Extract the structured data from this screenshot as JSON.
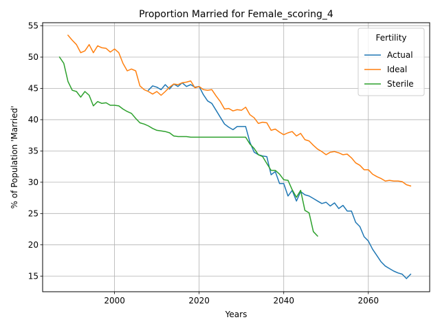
{
  "chart_data": {
    "type": "line",
    "title": "Proportion Married for Female_scoring_4",
    "xlabel": "Years",
    "ylabel": "% of Population 'Married'",
    "xlim": [
      1983,
      2074.5
    ],
    "ylim": [
      12.5,
      55.5
    ],
    "xticks": [
      2000,
      2020,
      2040,
      2060
    ],
    "yticks": [
      15,
      20,
      25,
      30,
      35,
      40,
      45,
      50,
      55
    ],
    "grid": true,
    "legend": {
      "title": "Fertility",
      "placement": "top-right"
    },
    "series": [
      {
        "name": "Actual",
        "color": "#1f77b4",
        "x": [
          2008,
          2009,
          2010,
          2011,
          2012,
          2013,
          2014,
          2015,
          2016,
          2017,
          2018,
          2019,
          2020,
          2021,
          2022,
          2023,
          2024,
          2025,
          2026,
          2027,
          2028,
          2029,
          2030,
          2031,
          2032,
          2033,
          2034,
          2035,
          2036,
          2037,
          2038,
          2039,
          2040,
          2041,
          2042,
          2043,
          2044,
          2045,
          2046,
          2047,
          2048,
          2049,
          2050,
          2051,
          2052,
          2053,
          2054,
          2055,
          2056,
          2057,
          2058,
          2059,
          2060,
          2061,
          2062,
          2063,
          2064,
          2065,
          2066,
          2067,
          2068,
          2069,
          2070
        ],
        "y": [
          44.7,
          45.4,
          45.2,
          44.8,
          45.6,
          44.9,
          45.7,
          45.3,
          45.9,
          45.3,
          45.6,
          45.2,
          45.3,
          44.0,
          43.0,
          42.6,
          41.5,
          40.4,
          39.3,
          38.8,
          38.4,
          38.9,
          38.9,
          38.9,
          36.4,
          34.8,
          34.4,
          34.2,
          34.1,
          31.2,
          31.7,
          29.8,
          29.8,
          27.8,
          28.7,
          27.0,
          28.5,
          28.0,
          27.8,
          27.4,
          27.0,
          26.6,
          26.8,
          26.2,
          26.7,
          25.8,
          26.3,
          25.4,
          25.4,
          23.6,
          22.9,
          21.3,
          20.6,
          19.3,
          18.3,
          17.3,
          16.6,
          16.2,
          15.8,
          15.5,
          15.3,
          14.6,
          15.3
        ]
      },
      {
        "name": "Ideal",
        "color": "#ff7f0e",
        "x": [
          1989,
          1990,
          1991,
          1992,
          1993,
          1994,
          1995,
          1996,
          1997,
          1998,
          1999,
          2000,
          2001,
          2002,
          2003,
          2004,
          2005,
          2006,
          2007,
          2008,
          2009,
          2010,
          2011,
          2012,
          2013,
          2014,
          2015,
          2016,
          2017,
          2018,
          2019,
          2020,
          2021,
          2022,
          2023,
          2024,
          2025,
          2026,
          2027,
          2028,
          2029,
          2030,
          2031,
          2032,
          2033,
          2034,
          2035,
          2036,
          2037,
          2038,
          2039,
          2040,
          2041,
          2042,
          2043,
          2044,
          2045,
          2046,
          2047,
          2048,
          2049,
          2050,
          2051,
          2052,
          2053,
          2054,
          2055,
          2056,
          2057,
          2058,
          2059,
          2060,
          2061,
          2062,
          2063,
          2064,
          2065,
          2066,
          2067,
          2068,
          2069,
          2070
        ],
        "y": [
          53.5,
          52.7,
          52.0,
          50.7,
          51.0,
          52.0,
          50.7,
          51.8,
          51.5,
          51.4,
          50.8,
          51.3,
          50.7,
          49.0,
          47.8,
          48.1,
          47.8,
          45.4,
          44.8,
          44.5,
          44.1,
          44.5,
          43.9,
          44.5,
          45.2,
          45.7,
          45.6,
          45.9,
          46.0,
          46.2,
          45.1,
          45.3,
          44.8,
          44.7,
          44.8,
          43.8,
          42.9,
          41.7,
          41.8,
          41.4,
          41.6,
          41.5,
          42.0,
          40.8,
          40.3,
          39.4,
          39.6,
          39.5,
          38.3,
          38.5,
          38.0,
          37.6,
          37.9,
          38.1,
          37.4,
          37.8,
          36.8,
          36.6,
          35.9,
          35.3,
          34.9,
          34.4,
          34.8,
          34.9,
          34.7,
          34.4,
          34.5,
          33.9,
          33.1,
          32.7,
          32.0,
          32.0,
          31.3,
          30.9,
          30.6,
          30.2,
          30.3,
          30.2,
          30.2,
          30.1,
          29.6,
          29.4
        ]
      },
      {
        "name": "Sterile",
        "color": "#2ca02c",
        "x": [
          1987,
          1988,
          1989,
          1990,
          1991,
          1992,
          1993,
          1994,
          1995,
          1996,
          1997,
          1998,
          1999,
          2000,
          2001,
          2002,
          2003,
          2004,
          2005,
          2006,
          2007,
          2008,
          2009,
          2010,
          2011,
          2012,
          2013,
          2014,
          2015,
          2016,
          2017,
          2018,
          2019,
          2020,
          2021,
          2022,
          2023,
          2024,
          2025,
          2026,
          2027,
          2028,
          2029,
          2030,
          2031,
          2032,
          2033,
          2034,
          2035,
          2036,
          2037,
          2038,
          2039,
          2040,
          2041,
          2042,
          2043,
          2044,
          2045,
          2046,
          2047,
          2048
        ],
        "y": [
          50.0,
          49.0,
          46.1,
          44.7,
          44.5,
          43.6,
          44.5,
          43.9,
          42.2,
          42.9,
          42.6,
          42.7,
          42.3,
          42.3,
          42.2,
          41.7,
          41.3,
          41.0,
          40.2,
          39.5,
          39.3,
          39.0,
          38.6,
          38.3,
          38.2,
          38.1,
          37.9,
          37.4,
          37.3,
          37.3,
          37.3,
          37.2,
          37.2,
          37.2,
          37.2,
          37.2,
          37.2,
          37.2,
          37.2,
          37.2,
          37.2,
          37.2,
          37.2,
          37.2,
          37.2,
          36.1,
          35.4,
          34.4,
          34.1,
          33.0,
          31.9,
          31.9,
          31.3,
          30.4,
          30.3,
          28.8,
          27.6,
          28.7,
          25.5,
          25.1,
          22.1,
          21.4
        ]
      }
    ]
  }
}
